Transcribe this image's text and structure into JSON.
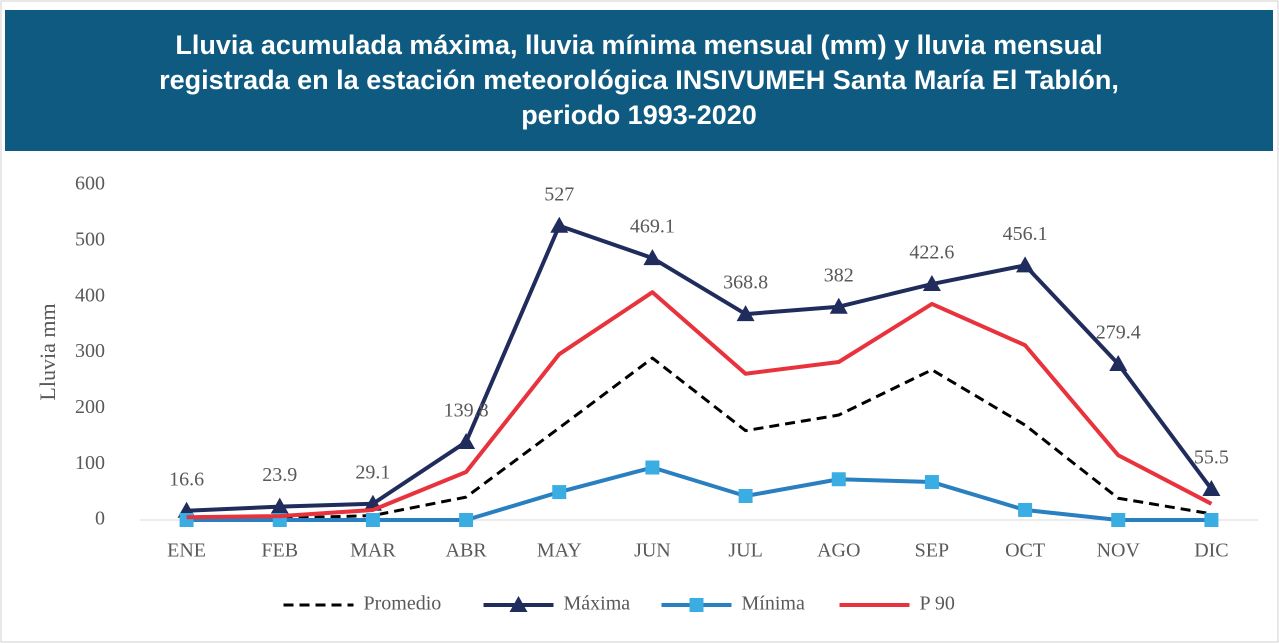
{
  "chart_data": {
    "type": "line",
    "title": "Lluvia acumulada máxima, lluvia mínima mensual (mm) y lluvia mensual registrada en la estación meteorológica INSIVUMEH Santa María El Tablón, periodo 1993-2020",
    "y_label": "Lluvia mm",
    "categories": [
      "ENE",
      "FEB",
      "MAR",
      "ABR",
      "MAY",
      "JUN",
      "JUL",
      "AGO",
      "SEP",
      "OCT",
      "NOV",
      "DIC"
    ],
    "series": [
      {
        "name": "Promedio",
        "color": "#000000",
        "dash": true,
        "values": [
          2,
          3,
          8,
          41,
          165,
          290,
          160,
          188,
          269,
          170,
          39,
          11
        ]
      },
      {
        "name": "Máxima",
        "color": "#1f2c5c",
        "marker": "triangle",
        "data_labels": true,
        "values": [
          16.6,
          23.9,
          29.1,
          139.8,
          527,
          469.1,
          368.8,
          382,
          422.6,
          456.1,
          279.4,
          55.5
        ]
      },
      {
        "name": "Mínima",
        "color": "#2a7fc0",
        "marker": "square",
        "marker_color": "#3aaee2",
        "values": [
          0,
          0,
          0,
          0,
          50,
          94,
          43,
          73,
          68,
          18,
          0,
          0
        ]
      },
      {
        "name": "P 90",
        "color": "#e8323c",
        "values": [
          5,
          7,
          18,
          86,
          297,
          408,
          262,
          283,
          387,
          313,
          116,
          29
        ]
      }
    ],
    "ylim": [
      0,
      600
    ],
    "yticks": [
      0,
      100,
      200,
      300,
      400,
      500,
      600
    ],
    "grid": false,
    "legend": "bottom"
  }
}
